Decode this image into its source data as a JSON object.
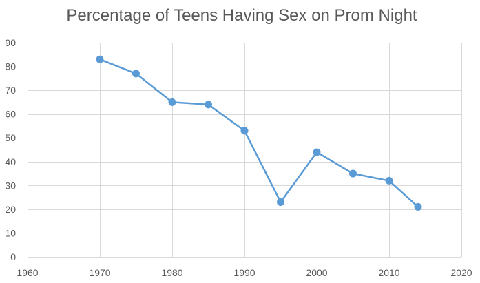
{
  "chart_data": {
    "type": "line",
    "title": "Percentage of Teens Having Sex on Prom Night",
    "xlabel": "",
    "ylabel": "",
    "xlim": [
      1960,
      2020
    ],
    "ylim": [
      0,
      90
    ],
    "x_ticks": [
      1960,
      1970,
      1980,
      1990,
      2000,
      2010,
      2020
    ],
    "y_ticks": [
      0,
      10,
      20,
      30,
      40,
      50,
      60,
      70,
      80,
      90
    ],
    "grid": true,
    "legend": "none",
    "series": [
      {
        "color": "#5b9bd5",
        "x": [
          1970,
          1975,
          1980,
          1985,
          1990,
          1995,
          2000,
          2005,
          2010,
          2014
        ],
        "y": [
          83,
          77,
          65,
          64,
          53,
          23,
          44,
          35,
          32,
          21
        ]
      }
    ]
  }
}
